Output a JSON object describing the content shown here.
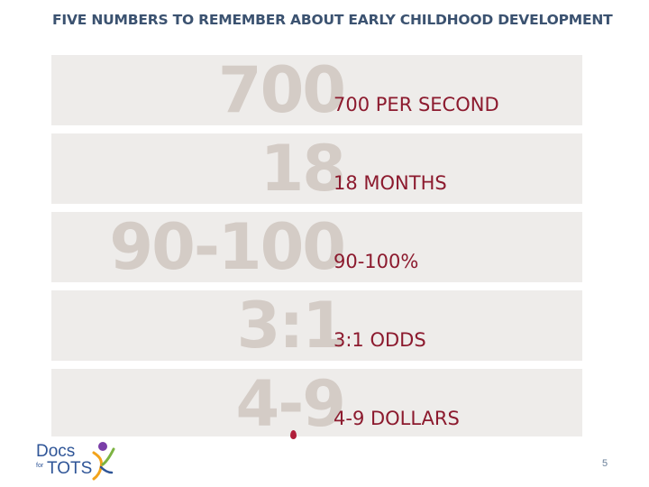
{
  "title": "FIVE NUMBERS TO REMEMBER ABOUT EARLY CHILDHOOD DEVELOPMENT",
  "facts": [
    {
      "big": "700",
      "label": "700 PER SECOND"
    },
    {
      "big": "18",
      "label": "18 MONTHS"
    },
    {
      "big": "90-100",
      "label": "90-100%"
    },
    {
      "big": "3:1",
      "label": "3:1 ODDS"
    },
    {
      "big": "4-9",
      "label": "4-9 DOLLARS"
    }
  ],
  "logo": {
    "line1": "Docs",
    "for": "for",
    "line2": "TOTS"
  },
  "page_number": "5",
  "colors": {
    "title": "#3b5270",
    "band": "#eeecea",
    "big_number": "#d4ccc6",
    "label": "#8c1a2e"
  }
}
